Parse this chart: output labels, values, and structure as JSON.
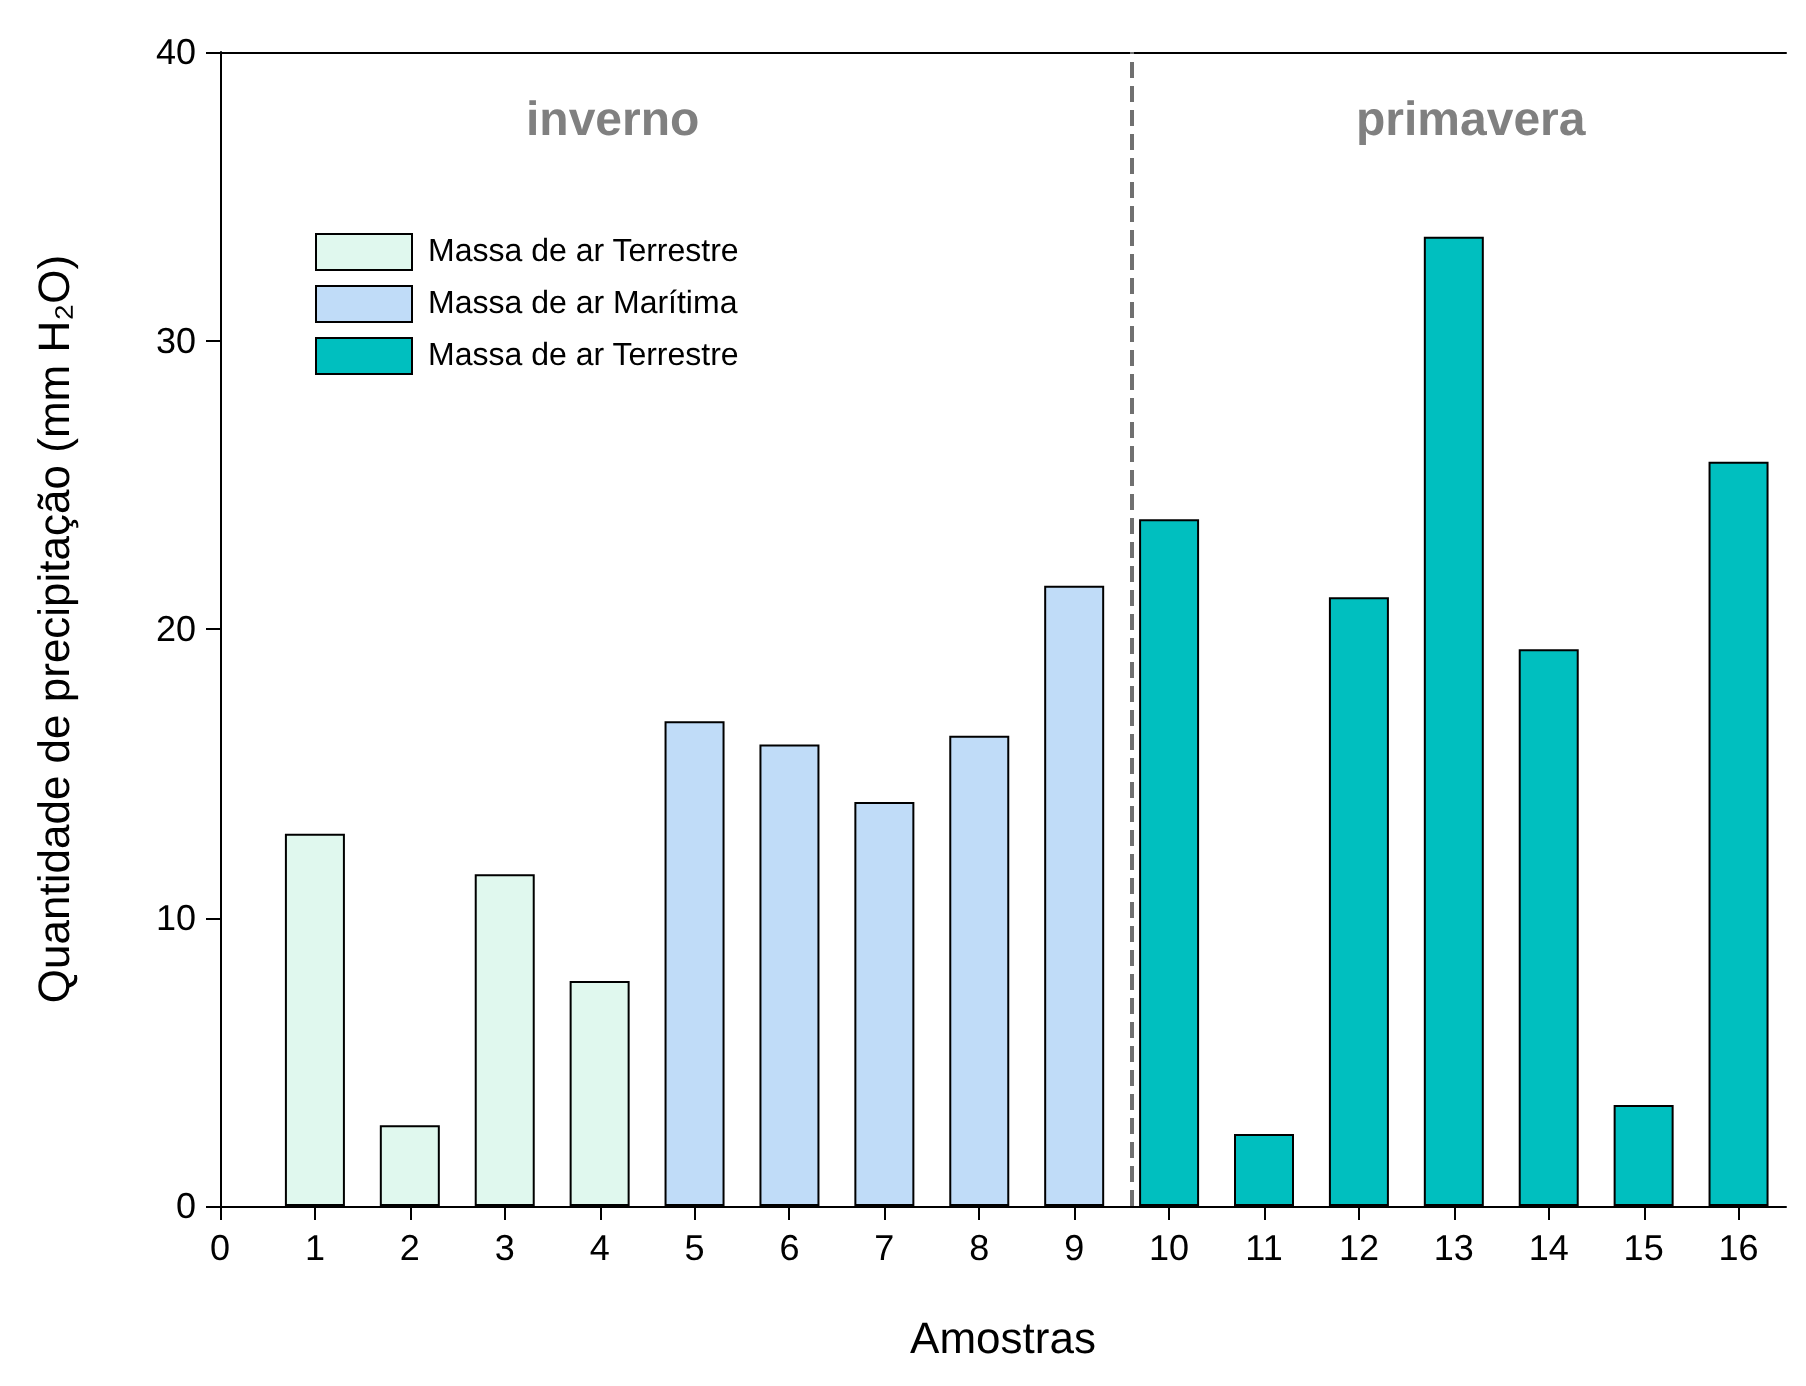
{
  "chart_data": {
    "type": "bar",
    "xlabel": "Amostras",
    "ylabel": "Quantidade de precipitação (mm H₂O)",
    "xlim": [
      0,
      16.5
    ],
    "xticks": [
      0,
      1,
      2,
      3,
      4,
      5,
      6,
      7,
      8,
      9,
      10,
      11,
      12,
      13,
      14,
      15,
      16
    ],
    "ylim": [
      0,
      40
    ],
    "yticks": [
      0,
      10,
      20,
      30,
      40
    ],
    "series": [
      {
        "name": "Massa de ar Terrestre",
        "color": "#e0f8ee",
        "x": [
          1,
          2,
          3,
          4
        ],
        "values": [
          12.9,
          2.8,
          11.5,
          7.8
        ]
      },
      {
        "name": "Massa de ar Marítima",
        "color": "#c0dcf8",
        "x": [
          5,
          6,
          7,
          8,
          9
        ],
        "values": [
          16.8,
          16.0,
          14.0,
          16.3,
          21.5
        ]
      },
      {
        "name": "Massa de ar Terrestre",
        "color": "#00bfbf",
        "x": [
          10,
          11,
          12,
          13,
          14,
          15,
          16
        ],
        "values": [
          23.8,
          2.5,
          21.1,
          33.6,
          19.3,
          3.5,
          25.8
        ]
      }
    ],
    "ref_lines": [
      {
        "axis": "x",
        "value": 9.6,
        "color": "#707070",
        "line_style": "dashed"
      }
    ],
    "annotations": [
      "inverno",
      "primavera"
    ],
    "legend": "top left",
    "grid": false
  }
}
